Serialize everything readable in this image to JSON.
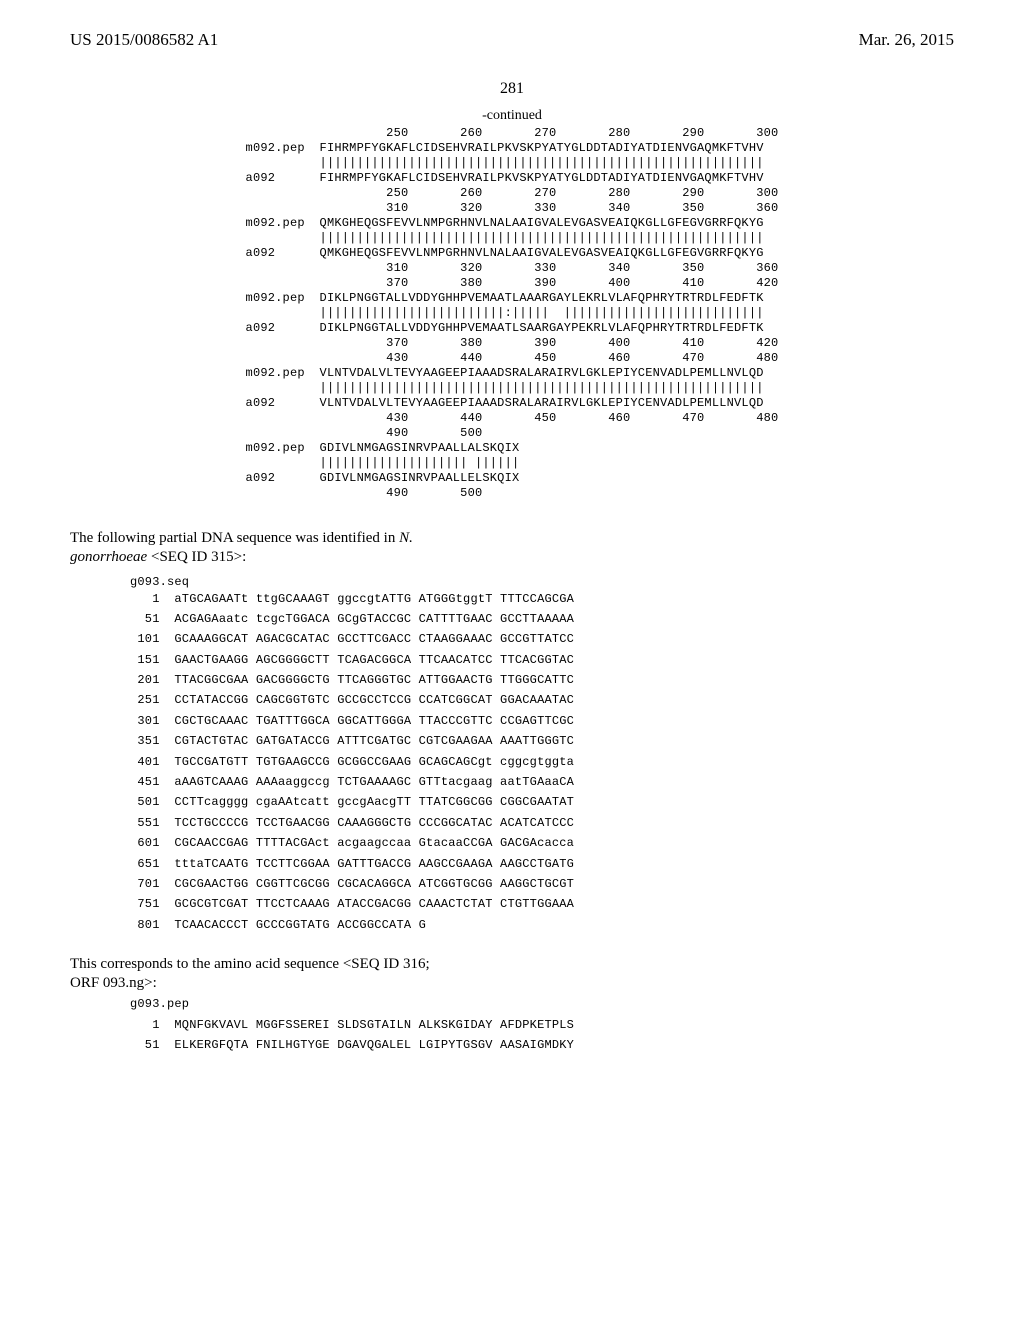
{
  "header": {
    "pub_no": "US 2015/0086582 A1",
    "pub_date": "Mar. 26, 2015"
  },
  "page_number": "281",
  "continued_label": "-continued",
  "alignment": {
    "rows": [
      "                   250       260       270       280       290       300",
      "m092.pep  FIHRMPFYGKAFLCIDSEHVRAILPKVSKPYATYGLDDTADIYATDIENVGAQMKFTVHV",
      "          ||||||||||||||||||||||||||||||||||||||||||||||||||||||||||||",
      "a092      FIHRMPFYGKAFLCIDSEHVRAILPKVSKPYATYGLDDTADIYATDIENVGAQMKFTVHV",
      "                   250       260       270       280       290       300",
      "",
      "                   310       320       330       340       350       360",
      "m092.pep  QMKGHEQGSFEVVLNMPGRHNVLNALAAIGVALEVGASVEAIQKGLLGFEGVGRRFQKYG",
      "          ||||||||||||||||||||||||||||||||||||||||||||||||||||||||||||",
      "a092      QMKGHEQGSFEVVLNMPGRHNVLNALAAIGVALEVGASVEAIQKGLLGFEGVGRRFQKYG",
      "                   310       320       330       340       350       360",
      "",
      "                   370       380       390       400       410       420",
      "m092.pep  DIKLPNGGTALLVDDYGHHPVEMAATLAAARGAYLEKRLVLAFQPHRYTRTRDLFEDFTK",
      "          |||||||||||||||||||||||||:|||||  |||||||||||||||||||||||||||",
      "a092      DIKLPNGGTALLVDDYGHHPVEMAATLSAARGAYPEKRLVLAFQPHRYTRTRDLFEDFTK",
      "                   370       380       390       400       410       420",
      "",
      "                   430       440       450       460       470       480",
      "m092.pep  VLNTVDALVLTEVYAAGEEPIAAADSRALARAIRVLGKLEPIYCENVADLPEMLLNVLQD",
      "          ||||||||||||||||||||||||||||||||||||||||||||||||||||||||||||",
      "a092      VLNTVDALVLTEVYAAGEEPIAAADSRALARAIRVLGKLEPIYCENVADLPEMLLNVLQD",
      "                   430       440       450       460       470       480",
      "",
      "                   490       500",
      "m092.pep  GDIVLNMGAGSINRVPAALLALSKQIX",
      "          |||||||||||||||||||| ||||||",
      "a092      GDIVLNMGAGSINRVPAALLELSKQIX",
      "                   490       500"
    ]
  },
  "narrative1_a": "The following partial DNA sequence was identified in ",
  "narrative1_ital": "N. gonorrhoeae",
  "narrative1_b": " <SEQ ID 315>:",
  "dna_header": "g093.seq",
  "dna": {
    "lines": [
      "   1  aTGCAGAATt ttgGCAAAGT ggccgtATTG ATGGGtggtT TTTCCAGCGA",
      "  51  ACGAGAaatc tcgcTGGACA GCgGTACCGC CATTTTGAAC GCCTTAAAAA",
      " 101  GCAAAGGCAT AGACGCATAC GCCTTCGACC CTAAGGAAAC GCCGTTATCC",
      " 151  GAACTGAAGG AGCGGGGCTT TCAGACGGCA TTCAACATCC TTCACGGTAC",
      " 201  TTACGGCGAA GACGGGGCTG TTCAGGGTGC ATTGGAACTG TTGGGCATTC",
      " 251  CCTATACCGG CAGCGGTGTC GCCGCCTCCG CCATCGGCAT GGACAAATAC",
      " 301  CGCTGCAAAC TGATTTGGCA GGCATTGGGA TTACCCGTTC CCGAGTTCGC",
      " 351  CGTACTGTAC GATGATACCG ATTTCGATGC CGTCGAAGAA AAATTGGGTC",
      " 401  TGCCGATGTT TGTGAAGCCG GCGGCCGAAG GCAGCAGCgt cggcgtggta",
      " 451  aAAGTCAAAG AAAaaggccg TCTGAAAAGC GTTtacgaag aatTGAaaCA",
      " 501  CCTTcagggg cgaAAtcatt gccgAacgTT TTATCGGCGG CGGCGAATAT",
      " 551  TCCTGCCCCG TCCTGAACGG CAAAGGGCTG CCCGGCATAC ACATCATCCC",
      " 601  CGCAACCGAG TTTTACGAct acgaagccaa GtacaaCCGA GACGAcacca",
      " 651  tttaTCAATG TCCTTCGGAA GATTTGACCG AAGCCGAAGA AAGCCTGATG",
      " 701  CGCGAACTGG CGGTTCGCGG CGCACAGGCA ATCGGTGCGG AAGGCTGCGT",
      " 751  GCGCGTCGAT TTCCTCAAAG ATACCGACGG CAAACTCTAT CTGTTGGAAA",
      " 801  TCAACACCCT GCCCGGTATG ACCGGCCATA G"
    ]
  },
  "narrative2": "This corresponds to the amino acid sequence <SEQ ID 316; ORF 093.ng>:",
  "pep_header": "g093.pep",
  "pep": {
    "lines": [
      "   1  MQNFGKVAVL MGGFSSEREI SLDSGTAILN ALKSKGIDAY AFDPKETPLS",
      "  51  ELKERGFQTA FNILHGTYGE DGAVQGALEL LGIPYTGSGV AASAIGMDKY"
    ]
  }
}
